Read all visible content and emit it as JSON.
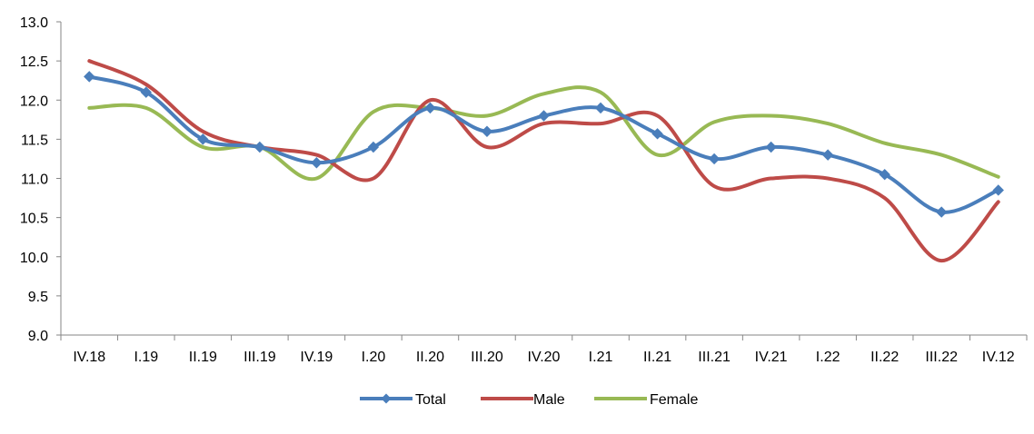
{
  "chart_data": {
    "type": "line",
    "title": "",
    "xlabel": "",
    "ylabel": "",
    "categories": [
      "IV.18",
      "I.19",
      "II.19",
      "III.19",
      "IV.19",
      "I.20",
      "II.20",
      "III.20",
      "IV.20",
      "I.21",
      "II.21",
      "III.21",
      "IV.21",
      "I.22",
      "II.22",
      "III.22",
      "IV.12"
    ],
    "ylim": [
      9.0,
      13.0
    ],
    "yticks": [
      "9.0",
      "9.5",
      "10.0",
      "10.5",
      "11.0",
      "11.5",
      "12.0",
      "12.5",
      "13.0"
    ],
    "grid": false,
    "legend_position": "bottom",
    "series": [
      {
        "name": "Total",
        "color": "#4a7ebb",
        "marker": "diamond",
        "values": [
          12.3,
          12.1,
          11.5,
          11.4,
          11.2,
          11.4,
          11.9,
          11.6,
          11.8,
          11.9,
          11.57,
          11.25,
          11.4,
          11.3,
          11.05,
          10.57,
          10.85
        ]
      },
      {
        "name": "Male",
        "color": "#be4b48",
        "marker": "none",
        "values": [
          12.5,
          12.2,
          11.6,
          11.4,
          11.3,
          11.0,
          12.0,
          11.4,
          11.7,
          11.7,
          11.8,
          10.9,
          11.0,
          11.0,
          10.75,
          9.95,
          10.7
        ]
      },
      {
        "name": "Female",
        "color": "#98b954",
        "marker": "none",
        "values": [
          11.9,
          11.9,
          11.4,
          11.4,
          11.0,
          11.85,
          11.9,
          11.8,
          12.08,
          12.1,
          11.3,
          11.72,
          11.8,
          11.7,
          11.45,
          11.3,
          11.02
        ]
      }
    ]
  }
}
